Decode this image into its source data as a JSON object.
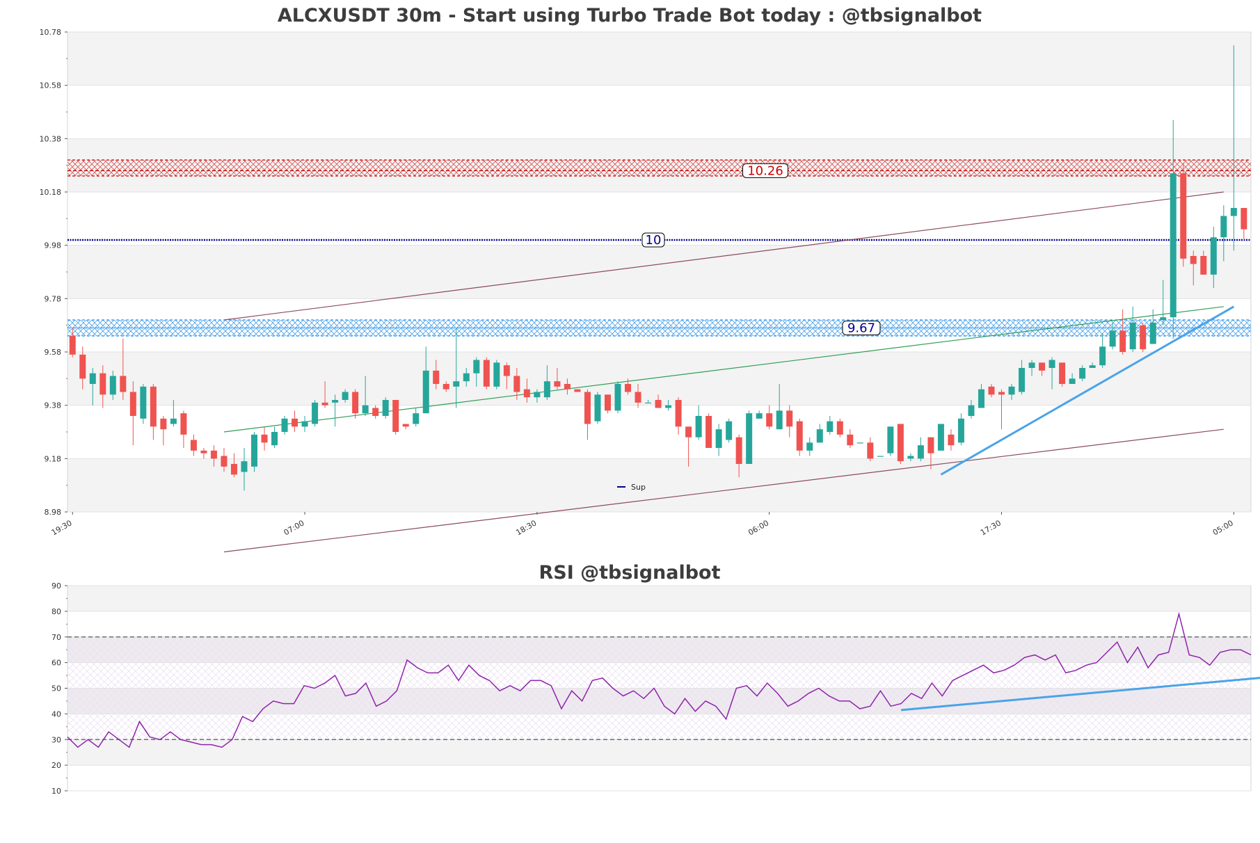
{
  "chart_data": [
    {
      "type": "candlestick",
      "title": "ALCXUSDT 30m - Start using Turbo Trade Bot today : @tbsignalbot",
      "symbol": "ALCXUSDT",
      "timeframe": "30m",
      "y_ticks": [
        "8.98",
        "9.18",
        "9.38",
        "9.58",
        "9.78",
        "9.98",
        "10.18",
        "10.38",
        "10.58",
        "10.78"
      ],
      "ylim": [
        8.98,
        10.78
      ],
      "x_ticks": [
        "19:30",
        "07:00",
        "18:30",
        "06:00",
        "17:30",
        "05:00"
      ],
      "x_tick_indices": [
        0,
        23,
        46,
        69,
        92,
        115
      ],
      "grid": true,
      "legend": {
        "placement": "bottom-center",
        "entries": [
          {
            "name": "Sup",
            "color": "#00008b"
          }
        ]
      },
      "levels": [
        {
          "label": "10.26",
          "value": 10.26,
          "style": "resistance-zone",
          "color": "#cc0000",
          "zone": [
            10.24,
            10.3
          ]
        },
        {
          "label": "10",
          "value": 10.0,
          "style": "dotted-line",
          "color": "#00008b"
        },
        {
          "label": "9.67",
          "value": 9.67,
          "style": "support-zone",
          "color": "#1e90ff",
          "zone": [
            9.64,
            9.7
          ]
        }
      ],
      "trendlines": [
        {
          "name": "channel-upper",
          "color": "#8b4a5a",
          "from": [
            15,
            9.7
          ],
          "to": [
            114,
            10.18
          ]
        },
        {
          "name": "channel-lower",
          "color": "#8b4a5a",
          "from": [
            15,
            8.83
          ],
          "to": [
            114,
            9.29
          ]
        },
        {
          "name": "green-trend",
          "color": "#2e9e55",
          "from": [
            15,
            9.28
          ],
          "to": [
            114,
            9.75
          ]
        },
        {
          "name": "support-trend",
          "color": "#4aa3e8",
          "from": [
            86,
            9.12
          ],
          "to": [
            115,
            9.75
          ]
        }
      ],
      "candles": [
        [
          9.64,
          9.57,
          9.67,
          9.56
        ],
        [
          9.57,
          9.48,
          9.6,
          9.44
        ],
        [
          9.46,
          9.5,
          9.52,
          9.38
        ],
        [
          9.5,
          9.42,
          9.53,
          9.37
        ],
        [
          9.42,
          9.49,
          9.51,
          9.4
        ],
        [
          9.49,
          9.43,
          9.63,
          9.4
        ],
        [
          9.43,
          9.34,
          9.47,
          9.23
        ],
        [
          9.33,
          9.45,
          9.46,
          9.31
        ],
        [
          9.45,
          9.3,
          9.46,
          9.25
        ],
        [
          9.33,
          9.29,
          9.34,
          9.23
        ],
        [
          9.31,
          9.33,
          9.4,
          9.3
        ],
        [
          9.35,
          9.27,
          9.36,
          9.22
        ],
        [
          9.25,
          9.21,
          9.27,
          9.19
        ],
        [
          9.21,
          9.2,
          9.22,
          9.18
        ],
        [
          9.21,
          9.18,
          9.23,
          9.15
        ],
        [
          9.19,
          9.15,
          9.22,
          9.13
        ],
        [
          9.16,
          9.12,
          9.2,
          9.11
        ],
        [
          9.13,
          9.17,
          9.22,
          9.06
        ],
        [
          9.15,
          9.27,
          9.28,
          9.13
        ],
        [
          9.27,
          9.24,
          9.3,
          9.21
        ],
        [
          9.23,
          9.28,
          9.3,
          9.22
        ],
        [
          9.28,
          9.33,
          9.34,
          9.27
        ],
        [
          9.33,
          9.3,
          9.36,
          9.28
        ],
        [
          9.3,
          9.32,
          9.34,
          9.28
        ],
        [
          9.31,
          9.39,
          9.4,
          9.3
        ],
        [
          9.39,
          9.38,
          9.47,
          9.37
        ],
        [
          9.39,
          9.4,
          9.42,
          9.3
        ],
        [
          9.4,
          9.43,
          9.44,
          9.39
        ],
        [
          9.43,
          9.35,
          9.44,
          9.33
        ],
        [
          9.35,
          9.38,
          9.49,
          9.34
        ],
        [
          9.37,
          9.34,
          9.38,
          9.33
        ],
        [
          9.34,
          9.4,
          9.41,
          9.33
        ],
        [
          9.4,
          9.28,
          9.4,
          9.27
        ],
        [
          9.31,
          9.3,
          9.31,
          9.29
        ],
        [
          9.31,
          9.35,
          9.37,
          9.3
        ],
        [
          9.35,
          9.51,
          9.6,
          9.35
        ],
        [
          9.51,
          9.46,
          9.55,
          9.44
        ],
        [
          9.46,
          9.44,
          9.47,
          9.43
        ],
        [
          9.45,
          9.47,
          9.67,
          9.37
        ],
        [
          9.47,
          9.5,
          9.52,
          9.45
        ],
        [
          9.5,
          9.55,
          9.56,
          9.45
        ],
        [
          9.55,
          9.45,
          9.56,
          9.44
        ],
        [
          9.45,
          9.54,
          9.55,
          9.44
        ],
        [
          9.53,
          9.49,
          9.54,
          9.44
        ],
        [
          9.49,
          9.43,
          9.52,
          9.4
        ],
        [
          9.44,
          9.41,
          9.48,
          9.39
        ],
        [
          9.41,
          9.43,
          9.44,
          9.39
        ],
        [
          9.41,
          9.47,
          9.53,
          9.4
        ],
        [
          9.47,
          9.45,
          9.52,
          9.44
        ],
        [
          9.46,
          9.44,
          9.48,
          9.42
        ],
        [
          9.44,
          9.43,
          9.44,
          9.43
        ],
        [
          9.43,
          9.31,
          9.44,
          9.25
        ],
        [
          9.32,
          9.42,
          9.43,
          9.31
        ],
        [
          9.42,
          9.36,
          9.42,
          9.35
        ],
        [
          9.36,
          9.46,
          9.47,
          9.35
        ],
        [
          9.46,
          9.43,
          9.48,
          9.42
        ],
        [
          9.43,
          9.39,
          9.46,
          9.37
        ],
        [
          9.39,
          9.39,
          9.4,
          9.39
        ],
        [
          9.4,
          9.37,
          9.42,
          9.37
        ],
        [
          9.37,
          9.38,
          9.4,
          9.36
        ],
        [
          9.4,
          9.3,
          9.41,
          9.27
        ],
        [
          9.3,
          9.26,
          9.3,
          9.15
        ],
        [
          9.26,
          9.34,
          9.38,
          9.25
        ],
        [
          9.34,
          9.22,
          9.35,
          9.22
        ],
        [
          9.22,
          9.29,
          9.31,
          9.19
        ],
        [
          9.25,
          9.32,
          9.33,
          9.24
        ],
        [
          9.26,
          9.16,
          9.27,
          9.11
        ],
        [
          9.16,
          9.35,
          9.36,
          9.16
        ],
        [
          9.33,
          9.35,
          9.36,
          9.33
        ],
        [
          9.35,
          9.3,
          9.38,
          9.29
        ],
        [
          9.29,
          9.36,
          9.46,
          9.29
        ],
        [
          9.36,
          9.3,
          9.38,
          9.26
        ],
        [
          9.32,
          9.21,
          9.33,
          9.19
        ],
        [
          9.21,
          9.24,
          9.26,
          9.19
        ],
        [
          9.24,
          9.29,
          9.31,
          9.24
        ],
        [
          9.28,
          9.32,
          9.34,
          9.27
        ],
        [
          9.32,
          9.27,
          9.33,
          9.26
        ],
        [
          9.27,
          9.23,
          9.29,
          9.22
        ],
        [
          9.24,
          9.24,
          9.24,
          9.24
        ],
        [
          9.24,
          9.18,
          9.26,
          9.17
        ],
        [
          9.19,
          9.19,
          9.19,
          9.19
        ],
        [
          9.2,
          9.3,
          9.3,
          9.19
        ],
        [
          9.31,
          9.17,
          9.31,
          9.16
        ],
        [
          9.18,
          9.19,
          9.2,
          9.17
        ],
        [
          9.18,
          9.23,
          9.26,
          9.17
        ],
        [
          9.26,
          9.2,
          9.26,
          9.14
        ],
        [
          9.21,
          9.31,
          9.31,
          9.21
        ],
        [
          9.27,
          9.23,
          9.29,
          9.21
        ],
        [
          9.24,
          9.33,
          9.35,
          9.23
        ],
        [
          9.34,
          9.38,
          9.4,
          9.33
        ],
        [
          9.37,
          9.44,
          9.46,
          9.37
        ],
        [
          9.45,
          9.42,
          9.46,
          9.41
        ],
        [
          9.43,
          9.42,
          9.44,
          9.29
        ],
        [
          9.42,
          9.45,
          9.46,
          9.4
        ],
        [
          9.43,
          9.52,
          9.55,
          9.42
        ],
        [
          9.52,
          9.54,
          9.55,
          9.49
        ],
        [
          9.54,
          9.51,
          9.54,
          9.49
        ],
        [
          9.52,
          9.55,
          9.56,
          9.44
        ],
        [
          9.54,
          9.46,
          9.54,
          9.45
        ],
        [
          9.46,
          9.48,
          9.5,
          9.46
        ],
        [
          9.48,
          9.52,
          9.53,
          9.47
        ],
        [
          9.52,
          9.53,
          9.54,
          9.52
        ],
        [
          9.53,
          9.6,
          9.65,
          9.52
        ],
        [
          9.6,
          9.66,
          9.69,
          9.59
        ],
        [
          9.66,
          9.58,
          9.74,
          9.57
        ],
        [
          9.59,
          9.69,
          9.75,
          9.58
        ],
        [
          9.68,
          9.59,
          9.69,
          9.58
        ],
        [
          9.61,
          9.69,
          9.74,
          9.61
        ],
        [
          9.7,
          9.71,
          9.85,
          9.68
        ],
        [
          9.71,
          10.25,
          10.45,
          9.63
        ],
        [
          10.25,
          9.93,
          10.29,
          9.9
        ],
        [
          9.94,
          9.91,
          9.96,
          9.83
        ],
        [
          9.94,
          9.87,
          9.96,
          9.87
        ],
        [
          9.87,
          10.01,
          10.05,
          9.82
        ],
        [
          10.01,
          10.09,
          10.13,
          9.92
        ],
        [
          10.09,
          10.12,
          10.73,
          9.96
        ],
        [
          10.12,
          10.04,
          10.12,
          10.0
        ]
      ]
    },
    {
      "type": "line",
      "title": "RSI @tbsignalbot",
      "y_ticks": [
        "10",
        "20",
        "30",
        "40",
        "50",
        "60",
        "70",
        "80",
        "90"
      ],
      "ylim": [
        10,
        90
      ],
      "overbought": 70,
      "oversold": 30,
      "color": "#8e24aa",
      "trendline": {
        "color": "#4aa3e8",
        "from": [
          81,
          41.5
        ],
        "to": [
          120,
          55.5
        ]
      },
      "values": [
        31,
        27,
        30,
        27,
        33,
        30,
        27,
        37,
        31,
        30,
        33,
        30,
        29,
        28,
        28,
        27,
        30,
        39,
        37,
        42,
        45,
        44,
        44,
        51,
        50,
        52,
        55,
        47,
        48,
        52,
        43,
        45,
        49,
        61,
        58,
        56,
        56,
        59,
        53,
        59,
        55,
        53,
        49,
        51,
        49,
        53,
        53,
        51,
        42,
        49,
        45,
        53,
        54,
        50,
        47,
        49,
        46,
        50,
        43,
        40,
        46,
        41,
        45,
        43,
        38,
        50,
        51,
        47,
        52,
        48,
        43,
        45,
        48,
        50,
        47,
        45,
        45,
        42,
        43,
        49,
        43,
        44,
        48,
        46,
        52,
        47,
        53,
        55,
        57,
        59,
        56,
        57,
        59,
        62,
        63,
        61,
        63,
        56,
        57,
        59,
        60,
        64,
        68,
        60,
        66,
        58,
        63,
        64,
        79,
        63,
        62,
        59,
        64,
        65,
        65,
        63
      ]
    }
  ]
}
